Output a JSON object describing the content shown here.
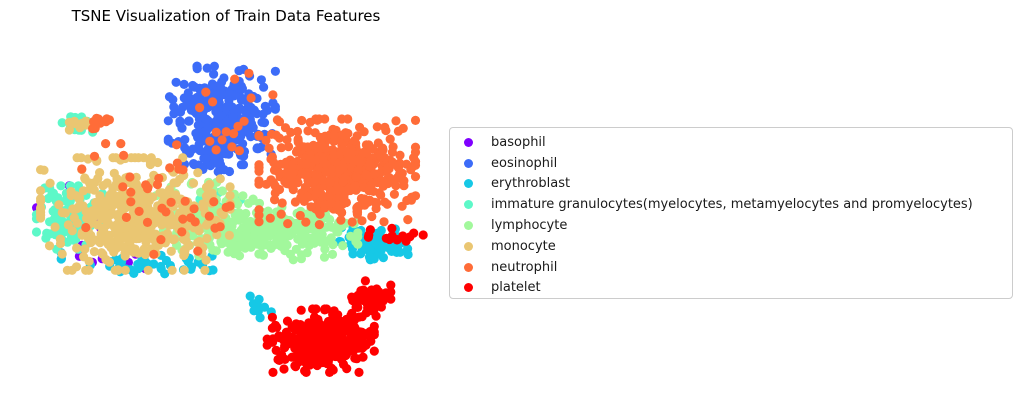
{
  "chart_data": {
    "type": "scatter",
    "title": "TSNE Visualization of Train Data Features",
    "xlabel": "",
    "ylabel": "",
    "axes_visible": false,
    "grid": false,
    "legend_position": "right",
    "series": [
      {
        "name": "basophil",
        "color": "#8000ff",
        "clusters": [
          {
            "cx": 0.17,
            "cy": 0.52,
            "rx": 0.14,
            "ry": 0.16,
            "n": 10
          },
          {
            "cx": 0.22,
            "cy": 0.62,
            "rx": 0.15,
            "ry": 0.06,
            "n": 8
          }
        ]
      },
      {
        "name": "eosinophil",
        "color": "#3c6cf8",
        "clusters": [
          {
            "cx": 0.49,
            "cy": 0.22,
            "rx": 0.13,
            "ry": 0.14,
            "n": 260
          },
          {
            "cx": 0.47,
            "cy": 0.33,
            "rx": 0.09,
            "ry": 0.05,
            "n": 40
          }
        ]
      },
      {
        "name": "erythroblast",
        "color": "#16c8e6",
        "clusters": [
          {
            "cx": 0.87,
            "cy": 0.58,
            "rx": 0.1,
            "ry": 0.05,
            "n": 90
          },
          {
            "cx": 0.32,
            "cy": 0.64,
            "rx": 0.22,
            "ry": 0.03,
            "n": 40
          },
          {
            "cx": 0.58,
            "cy": 0.76,
            "rx": 0.03,
            "ry": 0.06,
            "n": 10
          }
        ]
      },
      {
        "name": "immature granulocytes(myelocytes, metamyelocytes and promyelocytes)",
        "color": "#5df8c8",
        "clusters": [
          {
            "cx": 0.12,
            "cy": 0.51,
            "rx": 0.08,
            "ry": 0.09,
            "n": 110
          },
          {
            "cx": 0.14,
            "cy": 0.24,
            "rx": 0.04,
            "ry": 0.03,
            "n": 25
          },
          {
            "cx": 0.45,
            "cy": 0.48,
            "rx": 0.1,
            "ry": 0.05,
            "n": 30
          }
        ]
      },
      {
        "name": "lymphocyte",
        "color": "#a2f89c",
        "clusters": [
          {
            "cx": 0.6,
            "cy": 0.55,
            "rx": 0.22,
            "ry": 0.08,
            "n": 280
          },
          {
            "cx": 0.45,
            "cy": 0.5,
            "rx": 0.12,
            "ry": 0.09,
            "n": 90
          }
        ]
      },
      {
        "name": "monocyte",
        "color": "#eac672",
        "clusters": [
          {
            "cx": 0.28,
            "cy": 0.5,
            "rx": 0.23,
            "ry": 0.16,
            "n": 420
          },
          {
            "cx": 0.15,
            "cy": 0.25,
            "rx": 0.03,
            "ry": 0.02,
            "n": 8
          }
        ]
      },
      {
        "name": "neutrophil",
        "color": "#ff6c38",
        "clusters": [
          {
            "cx": 0.77,
            "cy": 0.38,
            "rx": 0.19,
            "ry": 0.15,
            "n": 520
          },
          {
            "cx": 0.33,
            "cy": 0.48,
            "rx": 0.18,
            "ry": 0.18,
            "n": 40
          },
          {
            "cx": 0.5,
            "cy": 0.22,
            "rx": 0.12,
            "ry": 0.12,
            "n": 18
          },
          {
            "cx": 0.2,
            "cy": 0.24,
            "rx": 0.03,
            "ry": 0.03,
            "n": 10
          }
        ]
      },
      {
        "name": "platelet",
        "color": "#ff0000",
        "clusters": [
          {
            "cx": 0.73,
            "cy": 0.86,
            "rx": 0.13,
            "ry": 0.09,
            "n": 300
          },
          {
            "cx": 0.85,
            "cy": 0.74,
            "rx": 0.05,
            "ry": 0.05,
            "n": 60
          },
          {
            "cx": 0.9,
            "cy": 0.57,
            "rx": 0.08,
            "ry": 0.05,
            "n": 14
          }
        ]
      }
    ]
  }
}
